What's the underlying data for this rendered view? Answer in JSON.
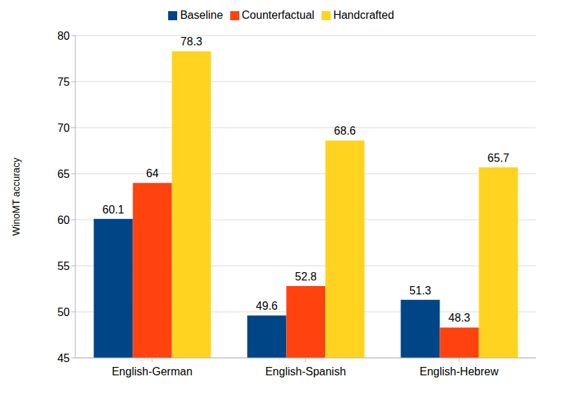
{
  "chart_data": {
    "type": "bar",
    "y_label": "WinoMT accuracy",
    "categories": [
      "English-German",
      "English-Spanish",
      "English-Hebrew"
    ],
    "series": [
      {
        "name": "Baseline",
        "color": "#004586",
        "values": [
          60.1,
          49.6,
          51.3
        ]
      },
      {
        "name": "Counterfactual",
        "color": "#ff420e",
        "values": [
          64,
          52.8,
          48.3
        ]
      },
      {
        "name": "Handcrafted",
        "color": "#ffd320",
        "values": [
          78.3,
          68.6,
          65.7
        ]
      }
    ],
    "ylim": [
      45,
      80
    ],
    "yticks": [
      45,
      50,
      55,
      60,
      65,
      70,
      75,
      80
    ],
    "grid": true,
    "legend": "top",
    "data_labels": true
  }
}
